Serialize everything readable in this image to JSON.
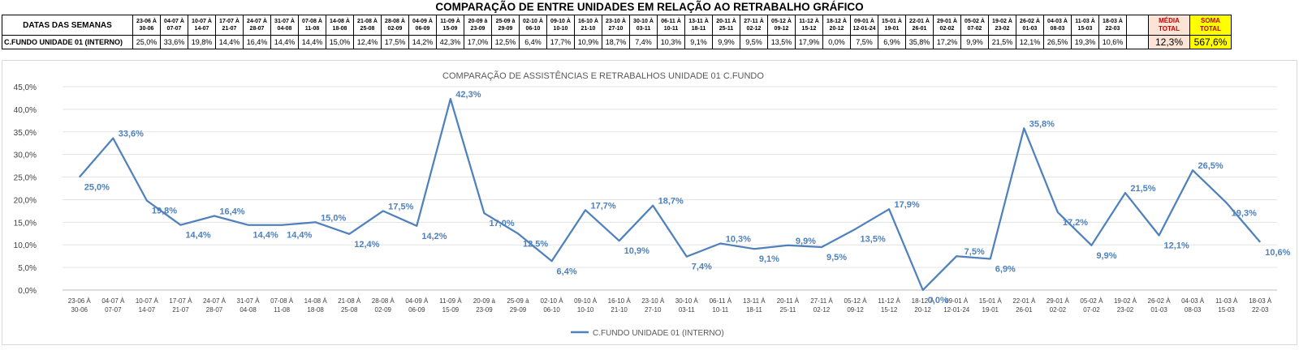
{
  "title": "COMPARAÇÃO DE ENTRE UNIDADES EM RELAÇÃO AO RETRABALHO GRÁFICO",
  "table": {
    "header_label": "DATAS DAS SEMANAS",
    "row_label": "C.FUNDO UNIDADE 01 (INTERNO)",
    "weeks": [
      "23-06 À 30-06",
      "04-07 À 07-07",
      "10-07 À 14-07",
      "17-07 À 21-07",
      "24-07 À 28-07",
      "31-07 À 04-08",
      "07-08 À 11-08",
      "14-08 À 18-08",
      "21-08 À 25-08",
      "28-08 À 02-09",
      "04-09 À 06-09",
      "11-09 À 15-09",
      "20-09 à 23-09",
      "25-09 à 29-09",
      "02-10 À 06-10",
      "09-10 À 10-10",
      "16-10 À 21-10",
      "23-10 À 27-10",
      "30-10 À 03-11",
      "06-11 À 10-11",
      "13-11 À 18-11",
      "20-11 À 25-11",
      "27-11 À 02-12",
      "05-12 À 09-12",
      "11-12 À 15-12",
      "18-12 À 20-12",
      "09-01 À 12-01-24",
      "15-01 À 19-01",
      "22-01 À 26-01",
      "29-01 À 02-02",
      "05-02 À 07-02",
      "19-02 À 23-02",
      "26-02 À 01-03",
      "04-03 À 08-03",
      "11-03 À 15-03",
      "18-03 À 22-03"
    ],
    "values": [
      "25,0%",
      "33,6%",
      "19,8%",
      "14,4%",
      "16,4%",
      "14,4%",
      "14,4%",
      "15,0%",
      "12,4%",
      "17,5%",
      "14,2%",
      "42,3%",
      "17,0%",
      "12,5%",
      "6,4%",
      "17,7%",
      "10,9%",
      "18,7%",
      "7,4%",
      "10,3%",
      "9,1%",
      "9,9%",
      "9,5%",
      "13,5%",
      "17,9%",
      "0,0%",
      "7,5%",
      "6,9%",
      "35,8%",
      "17,2%",
      "9,9%",
      "21,5%",
      "12,1%",
      "26,5%",
      "19,3%",
      "10,6%"
    ],
    "media_label": "MÉDIA TOTAL",
    "media_value": "12,3%",
    "soma_label": "SOMA TOTAL",
    "soma_value": "567,6%"
  },
  "chart_data": {
    "type": "line",
    "title": "COMPARAÇÃO DE ASSISTÊNCIAS E RETRABALHOS UNIDADE 01 C.FUNDO",
    "categories": [
      "23-06 À 30-06",
      "04-07 À 07-07",
      "10-07 À 14-07",
      "17-07 À 21-07",
      "24-07 À 28-07",
      "31-07 À 04-08",
      "07-08 À 11-08",
      "14-08 À 18-08",
      "21-08 À 25-08",
      "28-08 À 02-09",
      "04-09 À 06-09",
      "11-09 À 15-09",
      "20-09 à 23-09",
      "25-09 à 29-09",
      "02-10 À 06-10",
      "09-10 À 10-10",
      "16-10 À 21-10",
      "23-10 À 27-10",
      "30-10 À 03-11",
      "06-11 À 10-11",
      "13-11 À 18-11",
      "20-11 À 25-11",
      "27-11 À 02-12",
      "05-12 À 09-12",
      "11-12 À 15-12",
      "18-12 À 20-12",
      "09-01 À 12-01-24",
      "15-01 À 19-01",
      "22-01 À 26-01",
      "29-01 À 02-02",
      "05-02 À 07-02",
      "19-02 À 23-02",
      "26-02 À 01-03",
      "04-03 À 08-03",
      "11-03 À 15-03",
      "18-03 À 22-03"
    ],
    "series": [
      {
        "name": "C.FUNDO UNIDADE 01 (INTERNO)",
        "values": [
          25.0,
          33.6,
          19.8,
          14.4,
          16.4,
          14.4,
          14.4,
          15.0,
          12.4,
          17.5,
          14.2,
          42.3,
          17.0,
          12.5,
          6.4,
          17.7,
          10.9,
          18.7,
          7.4,
          10.3,
          9.1,
          9.9,
          9.5,
          13.5,
          17.9,
          0.0,
          7.5,
          6.9,
          35.8,
          17.2,
          9.9,
          21.5,
          12.1,
          26.5,
          19.3,
          10.6
        ]
      }
    ],
    "data_labels": [
      "25,0%",
      "33,6%",
      "19,8%",
      "14,4%",
      "16,4%",
      "14,4%",
      "14,4%",
      "15,0%",
      "12,4%",
      "17,5%",
      "14,2%",
      "42,3%",
      "17,0%",
      "12,5%",
      "6,4%",
      "17,7%",
      "10,9%",
      "18,7%",
      "7,4%",
      "10,3%",
      "9,1%",
      "9,9%",
      "9,5%",
      "13,5%",
      "17,9%",
      "0,0%",
      "7,5%",
      "6,9%",
      "35,8%",
      "17,2%",
      "9,9%",
      "21,5%",
      "12,1%",
      "26,5%",
      "19,3%",
      "10,6%"
    ],
    "y_ticks": [
      "0,0%",
      "5,0%",
      "10,0%",
      "15,0%",
      "20,0%",
      "25,0%",
      "30,0%",
      "35,0%",
      "40,0%",
      "45,0%"
    ],
    "ylim": [
      0,
      45
    ],
    "grid": true,
    "legend_position": "bottom",
    "line_color": "#4f81bd",
    "label_color": "#4f81bd"
  }
}
